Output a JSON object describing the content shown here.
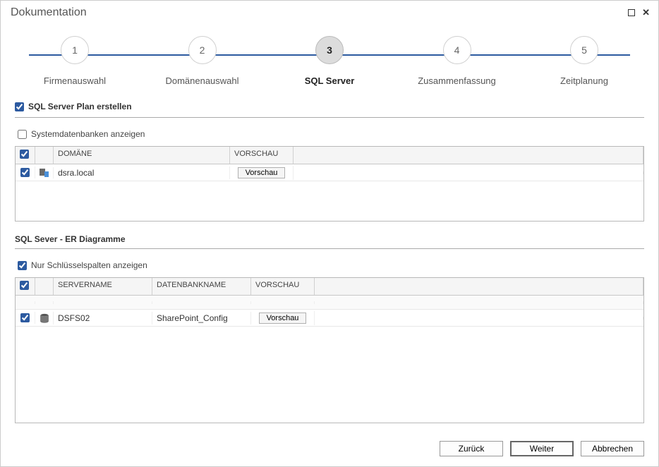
{
  "window": {
    "title": "Dokumentation"
  },
  "stepper": {
    "line_color": "#2c5aa0",
    "steps": [
      {
        "num": "1",
        "label": "Firmenauswahl",
        "active": false
      },
      {
        "num": "2",
        "label": "Domänenauswahl",
        "active": false
      },
      {
        "num": "3",
        "label": "SQL Server",
        "active": true
      },
      {
        "num": "4",
        "label": "Zusammenfassung",
        "active": false
      },
      {
        "num": "5",
        "label": "Zeitplanung",
        "active": false
      }
    ]
  },
  "section1": {
    "checkbox_label": "SQL Server Plan erstellen",
    "checked": true,
    "show_sysdb_label": "Systemdatenbanken anzeigen",
    "show_sysdb_checked": false,
    "grid": {
      "header_check": true,
      "col_domain": "DOMÄNE",
      "col_preview": "VORSCHAU",
      "rows": [
        {
          "checked": true,
          "domain": "dsra.local",
          "preview_btn": "Vorschau"
        }
      ]
    }
  },
  "section2": {
    "title": "SQL Sever - ER Diagramme",
    "keycols_label": "Nur Schlüsselspalten anzeigen",
    "keycols_checked": true,
    "grid": {
      "header_check": true,
      "col_server": "SERVERNAME",
      "col_dbname": "DATENBANKNAME",
      "col_preview": "VORSCHAU",
      "rows": [
        {
          "checked": true,
          "server": "DSFS02",
          "dbname": "SharePoint_Config",
          "preview_btn": "Vorschau"
        }
      ]
    }
  },
  "footer": {
    "back": "Zurück",
    "next": "Weiter",
    "cancel": "Abbrechen"
  },
  "colors": {
    "accent": "#2c5aa0",
    "border": "#b8b8b8",
    "header_bg": "#f5f5f5"
  }
}
